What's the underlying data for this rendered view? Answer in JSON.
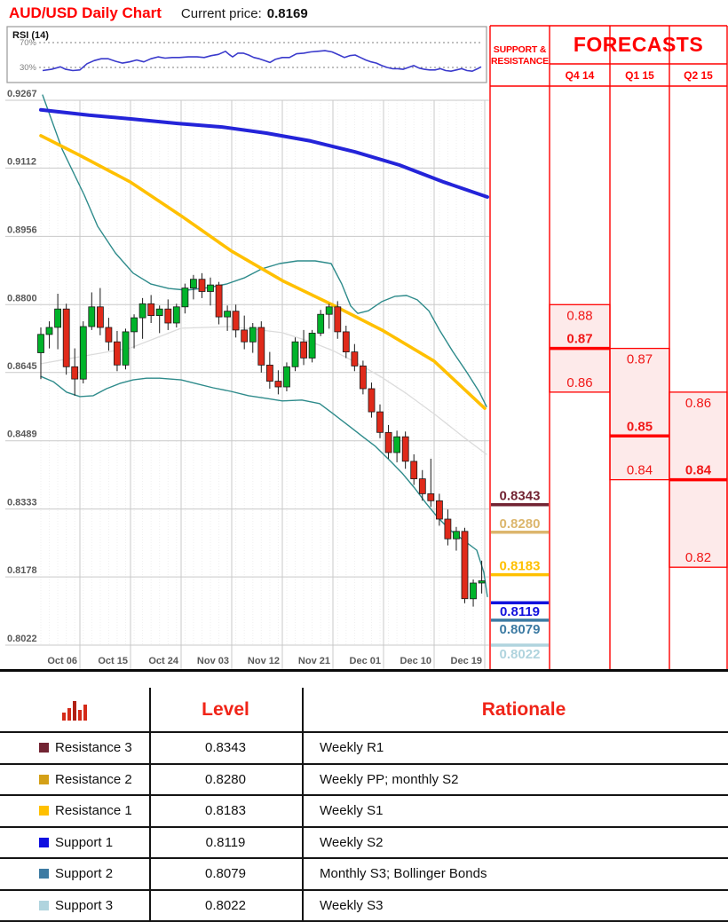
{
  "header": {
    "title": "AUD/USD Daily Chart",
    "price_label": "Current price:",
    "price": "0.8169"
  },
  "rsi": {
    "label": "RSI (14)",
    "upper_label": "70%",
    "lower_label": "30%",
    "points": [
      [
        48,
        25
      ],
      [
        58,
        27
      ],
      [
        68,
        31
      ],
      [
        74,
        27
      ],
      [
        82,
        25
      ],
      [
        90,
        26
      ],
      [
        98,
        36
      ],
      [
        106,
        41
      ],
      [
        114,
        44
      ],
      [
        122,
        44
      ],
      [
        130,
        40
      ],
      [
        138,
        37
      ],
      [
        146,
        39
      ],
      [
        154,
        42
      ],
      [
        162,
        39
      ],
      [
        170,
        44
      ],
      [
        178,
        47
      ],
      [
        186,
        45
      ],
      [
        194,
        46
      ],
      [
        202,
        46
      ],
      [
        212,
        47
      ],
      [
        222,
        47
      ],
      [
        230,
        46
      ],
      [
        238,
        49
      ],
      [
        246,
        51
      ],
      [
        254,
        56
      ],
      [
        258,
        51
      ],
      [
        262,
        47
      ],
      [
        268,
        53
      ],
      [
        274,
        53
      ],
      [
        280,
        50
      ],
      [
        286,
        46
      ],
      [
        292,
        44
      ],
      [
        298,
        41
      ],
      [
        304,
        38
      ],
      [
        310,
        43
      ],
      [
        318,
        46
      ],
      [
        326,
        46
      ],
      [
        334,
        52
      ],
      [
        342,
        53
      ],
      [
        350,
        55
      ],
      [
        358,
        56
      ],
      [
        366,
        57
      ],
      [
        374,
        55
      ],
      [
        382,
        50
      ],
      [
        388,
        46
      ],
      [
        394,
        49
      ],
      [
        400,
        50
      ],
      [
        406,
        46
      ],
      [
        412,
        42
      ],
      [
        418,
        39
      ],
      [
        424,
        37
      ],
      [
        430,
        33
      ],
      [
        436,
        30
      ],
      [
        442,
        28
      ],
      [
        448,
        28
      ],
      [
        454,
        27
      ],
      [
        460,
        30
      ],
      [
        466,
        33
      ],
      [
        472,
        29
      ],
      [
        478,
        27
      ],
      [
        484,
        26
      ],
      [
        490,
        26
      ],
      [
        496,
        28
      ],
      [
        502,
        25
      ],
      [
        508,
        24
      ],
      [
        514,
        26
      ],
      [
        520,
        28
      ],
      [
        526,
        25
      ],
      [
        532,
        24
      ],
      [
        538,
        28
      ],
      [
        542,
        31
      ]
    ]
  },
  "chart_data": {
    "type": "candlestick",
    "title": "AUD/USD Daily Chart",
    "up_color": "#00b32a",
    "down_color": "#e02a1a",
    "y_axis": {
      "max": 0.9267,
      "min": 0.8022,
      "labels": [
        "0.9267",
        "0.9112",
        "0.8956",
        "0.8800",
        "0.8645",
        "0.8489",
        "0.8333",
        "0.8178",
        "0.8022"
      ]
    },
    "x_axis": {
      "ticks": [
        [
          "Oct 06",
          90
        ],
        [
          "Oct 15",
          147
        ],
        [
          "Oct 24",
          204
        ],
        [
          "Nov 03",
          261
        ],
        [
          "Nov 12",
          318
        ],
        [
          "Nov 21",
          375
        ],
        [
          "Dec 01",
          432
        ],
        [
          "Dec 10",
          489
        ],
        [
          "Dec 19",
          546
        ]
      ]
    },
    "candles": [
      [
        0.869,
        0.8748,
        0.863,
        0.8732
      ],
      [
        0.8732,
        0.8762,
        0.87,
        0.8748
      ],
      [
        0.8748,
        0.8825,
        0.8698,
        0.879
      ],
      [
        0.879,
        0.8802,
        0.864,
        0.8658
      ],
      [
        0.8658,
        0.87,
        0.8592,
        0.863
      ],
      [
        0.863,
        0.8762,
        0.862,
        0.875
      ],
      [
        0.875,
        0.8828,
        0.8742,
        0.8795
      ],
      [
        0.8795,
        0.8838,
        0.873,
        0.8748
      ],
      [
        0.8748,
        0.877,
        0.8695,
        0.8715
      ],
      [
        0.8715,
        0.874,
        0.8648,
        0.8662
      ],
      [
        0.8662,
        0.8745,
        0.8652,
        0.8738
      ],
      [
        0.8738,
        0.8778,
        0.87,
        0.877
      ],
      [
        0.877,
        0.8815,
        0.8722,
        0.8802
      ],
      [
        0.8802,
        0.8822,
        0.8758,
        0.8775
      ],
      [
        0.8775,
        0.8798,
        0.8735,
        0.879
      ],
      [
        0.879,
        0.8812,
        0.8742,
        0.8758
      ],
      [
        0.8758,
        0.8802,
        0.8748,
        0.8795
      ],
      [
        0.8795,
        0.8848,
        0.878,
        0.8838
      ],
      [
        0.8838,
        0.8868,
        0.8812,
        0.8858
      ],
      [
        0.8858,
        0.8872,
        0.8815,
        0.883
      ],
      [
        0.883,
        0.8862,
        0.8798,
        0.8845
      ],
      [
        0.8845,
        0.8852,
        0.8755,
        0.8772
      ],
      [
        0.8772,
        0.8798,
        0.874,
        0.8785
      ],
      [
        0.8785,
        0.88,
        0.8725,
        0.8742
      ],
      [
        0.8742,
        0.8775,
        0.8698,
        0.8715
      ],
      [
        0.8715,
        0.8758,
        0.869,
        0.8748
      ],
      [
        0.8748,
        0.8762,
        0.8645,
        0.8662
      ],
      [
        0.8662,
        0.8692,
        0.8608,
        0.8625
      ],
      [
        0.8625,
        0.865,
        0.8595,
        0.8612
      ],
      [
        0.8612,
        0.8668,
        0.8602,
        0.8658
      ],
      [
        0.8658,
        0.8725,
        0.8648,
        0.8715
      ],
      [
        0.8715,
        0.8742,
        0.8662,
        0.8678
      ],
      [
        0.8678,
        0.8742,
        0.8668,
        0.8735
      ],
      [
        0.8735,
        0.8788,
        0.8728,
        0.8778
      ],
      [
        0.8778,
        0.8802,
        0.8745,
        0.8795
      ],
      [
        0.8795,
        0.8808,
        0.8722,
        0.8738
      ],
      [
        0.8738,
        0.8752,
        0.8678,
        0.8692
      ],
      [
        0.8692,
        0.871,
        0.8648,
        0.866
      ],
      [
        0.866,
        0.8672,
        0.8595,
        0.8608
      ],
      [
        0.8608,
        0.8622,
        0.8542,
        0.8555
      ],
      [
        0.8555,
        0.8572,
        0.8495,
        0.8508
      ],
      [
        0.8508,
        0.8525,
        0.8448,
        0.8462
      ],
      [
        0.8462,
        0.8512,
        0.844,
        0.8498
      ],
      [
        0.8498,
        0.851,
        0.8425,
        0.8442
      ],
      [
        0.8442,
        0.8458,
        0.8388,
        0.8402
      ],
      [
        0.8402,
        0.8422,
        0.8352,
        0.8368
      ],
      [
        0.8368,
        0.8448,
        0.8338,
        0.8352
      ],
      [
        0.8352,
        0.8368,
        0.8295,
        0.831
      ],
      [
        0.831,
        0.8332,
        0.825,
        0.8265
      ],
      [
        0.8265,
        0.8292,
        0.8238,
        0.8282
      ],
      [
        0.8282,
        0.829,
        0.8118,
        0.8128
      ],
      [
        0.8128,
        0.8172,
        0.811,
        0.8164
      ],
      [
        0.8164,
        0.8215,
        0.814,
        0.8169
      ]
    ],
    "overlays": [
      {
        "name": "sma-mid-line",
        "color": "#dcdcdc",
        "width": 1.3,
        "points": [
          [
            46,
            0.8665
          ],
          [
            90,
            0.8681
          ],
          [
            147,
            0.8701
          ],
          [
            204,
            0.8746
          ],
          [
            261,
            0.875
          ],
          [
            318,
            0.8736
          ],
          [
            350,
            0.8715
          ],
          [
            375,
            0.8695
          ],
          [
            400,
            0.8669
          ],
          [
            430,
            0.8634
          ],
          [
            457,
            0.8598
          ],
          [
            490,
            0.8549
          ],
          [
            523,
            0.8496
          ],
          [
            548,
            0.8458
          ]
        ]
      },
      {
        "name": "bollinger-upper-line",
        "color": "#2e8b8b",
        "width": 1.4,
        "points": [
          [
            48,
            0.9279
          ],
          [
            70,
            0.9155
          ],
          [
            95,
            0.905
          ],
          [
            110,
            0.8979
          ],
          [
            130,
            0.8918
          ],
          [
            150,
            0.8872
          ],
          [
            170,
            0.8847
          ],
          [
            190,
            0.8837
          ],
          [
            210,
            0.8833
          ],
          [
            235,
            0.8839
          ],
          [
            255,
            0.8847
          ],
          [
            275,
            0.8861
          ],
          [
            295,
            0.8882
          ],
          [
            315,
            0.8894
          ],
          [
            335,
            0.89
          ],
          [
            355,
            0.89
          ],
          [
            373,
            0.8894
          ],
          [
            385,
            0.8847
          ],
          [
            395,
            0.8797
          ],
          [
            403,
            0.878
          ],
          [
            415,
            0.8786
          ],
          [
            430,
            0.8807
          ],
          [
            445,
            0.8819
          ],
          [
            458,
            0.8821
          ],
          [
            470,
            0.8811
          ],
          [
            483,
            0.8786
          ],
          [
            495,
            0.8742
          ],
          [
            510,
            0.8693
          ],
          [
            525,
            0.8648
          ],
          [
            540,
            0.86
          ],
          [
            548,
            0.8567
          ]
        ]
      },
      {
        "name": "bollinger-lower-line",
        "color": "#2e8b8b",
        "width": 1.4,
        "points": [
          [
            46,
            0.8636
          ],
          [
            60,
            0.8624
          ],
          [
            75,
            0.86
          ],
          [
            90,
            0.859
          ],
          [
            105,
            0.8592
          ],
          [
            120,
            0.8608
          ],
          [
            135,
            0.862
          ],
          [
            150,
            0.8628
          ],
          [
            165,
            0.8632
          ],
          [
            180,
            0.8632
          ],
          [
            204,
            0.8628
          ],
          [
            220,
            0.862
          ],
          [
            240,
            0.861
          ],
          [
            260,
            0.8602
          ],
          [
            280,
            0.8592
          ],
          [
            300,
            0.8586
          ],
          [
            318,
            0.858
          ],
          [
            340,
            0.8582
          ],
          [
            360,
            0.8574
          ],
          [
            375,
            0.8551
          ],
          [
            393,
            0.8523
          ],
          [
            410,
            0.8496
          ],
          [
            423,
            0.8476
          ],
          [
            440,
            0.8442
          ],
          [
            453,
            0.8415
          ],
          [
            467,
            0.8381
          ],
          [
            480,
            0.8346
          ],
          [
            493,
            0.8314
          ],
          [
            507,
            0.8285
          ],
          [
            520,
            0.8265
          ],
          [
            537,
            0.8239
          ],
          [
            545,
            0.8188
          ],
          [
            549,
            0.8133
          ]
        ]
      },
      {
        "name": "ma-medium-line",
        "color": "#ffc000",
        "width": 3.6,
        "points": [
          [
            46,
            0.9186
          ],
          [
            90,
            0.9141
          ],
          [
            147,
            0.908
          ],
          [
            204,
            0.9003
          ],
          [
            261,
            0.8922
          ],
          [
            318,
            0.8855
          ],
          [
            375,
            0.8799
          ],
          [
            432,
            0.874
          ],
          [
            489,
            0.8671
          ],
          [
            546,
            0.8563
          ]
        ]
      },
      {
        "name": "ma-long-line",
        "color": "#2424d9",
        "width": 4,
        "points": [
          [
            46,
            0.9245
          ],
          [
            100,
            0.9233
          ],
          [
            150,
            0.9224
          ],
          [
            200,
            0.9214
          ],
          [
            250,
            0.9206
          ],
          [
            300,
            0.9192
          ],
          [
            350,
            0.9174
          ],
          [
            400,
            0.9149
          ],
          [
            450,
            0.9119
          ],
          [
            500,
            0.908
          ],
          [
            549,
            0.9046
          ]
        ]
      }
    ]
  },
  "support_resistance": {
    "header_line1": "SUPPORT &",
    "header_line2": "RESISTANCE",
    "levels": [
      {
        "label": "0.8343",
        "value": 0.8343,
        "color": "#722433",
        "side": "resistance"
      },
      {
        "label": "0.8280",
        "value": 0.828,
        "color": "#dcb66d",
        "side": "resistance"
      },
      {
        "label": "0.8183",
        "value": 0.8183,
        "color": "#ffc000",
        "side": "resistance"
      },
      {
        "label": "0.8119",
        "value": 0.8119,
        "color": "#1212dd",
        "side": "support"
      },
      {
        "label": "0.8079",
        "value": 0.8079,
        "color": "#3d7ba3",
        "side": "support"
      },
      {
        "label": "0.8022",
        "value": 0.8022,
        "color": "#b0d4de",
        "side": "support"
      }
    ]
  },
  "forecasts": {
    "title": "FORECASTS",
    "columns": [
      {
        "label": "Q4 14",
        "high": 0.88,
        "forecast": 0.87,
        "low": 0.86
      },
      {
        "label": "Q1 15",
        "high": 0.87,
        "forecast": 0.85,
        "low": 0.84
      },
      {
        "label": "Q2 15",
        "high": 0.86,
        "forecast": 0.84,
        "low": 0.82
      }
    ]
  },
  "table": {
    "level_header": "Level",
    "rationale_header": "Rationale",
    "rows": [
      {
        "name": "Resistance 3",
        "level": "0.8343",
        "rationale": "Weekly R1",
        "color": "#722433"
      },
      {
        "name": "Resistance 2",
        "level": "0.8280",
        "rationale": "Weekly PP; monthly S2",
        "color": "#d4a017"
      },
      {
        "name": "Resistance 1",
        "level": "0.8183",
        "rationale": "Weekly S1",
        "color": "#ffc000"
      },
      {
        "name": "Support 1",
        "level": "0.8119",
        "rationale": "Weekly S2",
        "color": "#0f0fe0"
      },
      {
        "name": "Support 2",
        "level": "0.8079",
        "rationale": "Monthly S3; Bollinger Bonds",
        "color": "#3d7ba3"
      },
      {
        "name": "Support 3",
        "level": "0.8022",
        "rationale": "Weekly S3",
        "color": "#b0d4de"
      }
    ]
  },
  "colors": {
    "accent_red": "#ff0000",
    "grid": "#c9c9c9",
    "axis_text": "#595959",
    "forecast_fill": "#fdeaea"
  }
}
